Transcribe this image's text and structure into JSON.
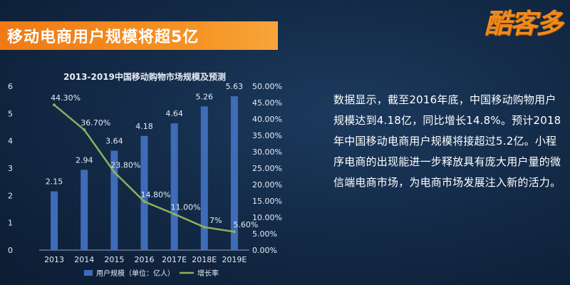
{
  "header": {
    "title": "移动电商用户规模将超5亿",
    "logo": "酷客多"
  },
  "description": "数据显示，截至2016年底，中国移动购物用户规模达到4.18亿，同比增长14.8%。预计2018年中国移动电商用户规模将接超过5.2亿。小程序电商的出现能进一步释放具有庞大用户量的微信端电商市场，为电商市场发展注入新的活力。",
  "chart_data": {
    "type": "bar",
    "title": "2013-2019中国移动购物市场规模及预测",
    "categories": [
      "2013",
      "2014",
      "2015",
      "2016",
      "2017E",
      "2018E",
      "2019E"
    ],
    "series": [
      {
        "name": "用户规模（单位：亿人）",
        "type": "bar",
        "axis": "left",
        "values": [
          2.15,
          2.94,
          3.64,
          4.18,
          4.64,
          5.26,
          5.63
        ],
        "labels": [
          "2.15",
          "2.94",
          "3.64",
          "4.18",
          "4.64",
          "5.26",
          "5.63"
        ]
      },
      {
        "name": "增长率",
        "type": "line",
        "axis": "right",
        "values": [
          44.3,
          36.7,
          23.8,
          14.8,
          11.0,
          7.0,
          5.6
        ],
        "labels": [
          "44.30%",
          "36.70%",
          "23.80%",
          "14.80%",
          "11.00%",
          "7%",
          "5.60%"
        ]
      }
    ],
    "y_left": {
      "min": 0,
      "max": 6,
      "ticks": [
        "0",
        "1",
        "2",
        "3",
        "4",
        "5",
        "6"
      ]
    },
    "y_right": {
      "min": 0,
      "max": 50,
      "ticks": [
        "0.00%",
        "5.00%",
        "10.00%",
        "15.00%",
        "20.00%",
        "25.00%",
        "30.00%",
        "35.00%",
        "40.00%",
        "45.00%",
        "50.00%"
      ]
    },
    "legend_position": "bottom",
    "grid": false,
    "colors": {
      "bar": "#3f6cb8",
      "line": "#8db259",
      "text": "#e6ecf5",
      "axis": "#8fa3bf"
    }
  }
}
